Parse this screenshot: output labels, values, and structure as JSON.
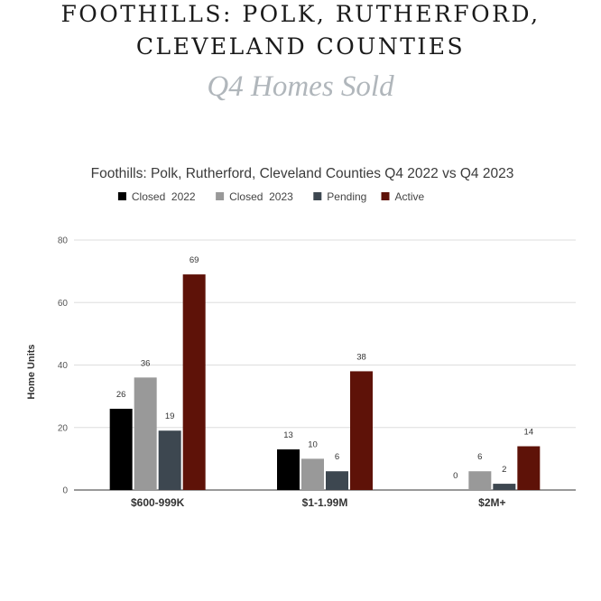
{
  "header": {
    "line1": "Foothills: Polk, Rutherford,",
    "line2": "Cleveland Counties",
    "subtitle": "Q4 Homes Sold"
  },
  "chart_data": {
    "type": "bar",
    "title": "Foothills: Polk, Rutherford, Cleveland Counties Q4 2022 vs Q4 2023",
    "xlabel": "",
    "ylabel": "Home Units",
    "ylim": [
      0,
      80
    ],
    "yticks": [
      0,
      20,
      40,
      60,
      80
    ],
    "grid": true,
    "legend_position": "top",
    "categories": [
      "$600-999K",
      "$1-1.99M",
      "$2M+"
    ],
    "series": [
      {
        "name": "Closed  2022",
        "color": "#000000",
        "values": [
          26,
          13,
          0
        ]
      },
      {
        "name": "Closed  2023",
        "color": "#999999",
        "values": [
          36,
          10,
          6
        ]
      },
      {
        "name": "Pending",
        "color": "#3d4750",
        "values": [
          19,
          6,
          2
        ]
      },
      {
        "name": "Active",
        "color": "#5e1208",
        "values": [
          69,
          38,
          14
        ]
      }
    ]
  }
}
